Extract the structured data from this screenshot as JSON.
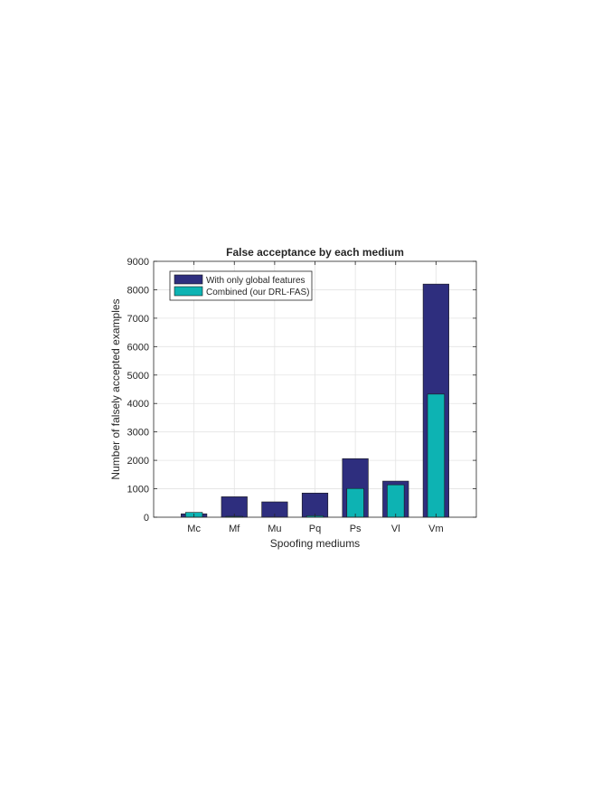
{
  "chart_data": {
    "type": "bar",
    "title": "False acceptance by each medium",
    "xlabel": "Spoofing mediums",
    "ylabel": "Number of falsely accepted examples",
    "categories": [
      "Mc",
      "Mf",
      "Mu",
      "Pq",
      "Ps",
      "Vl",
      "Vm"
    ],
    "series": [
      {
        "name": "With only global features",
        "values": [
          120,
          720,
          540,
          850,
          2060,
          1270,
          8200
        ],
        "color": "#2e2e7e"
      },
      {
        "name": "Combined (our DRL-FAS)",
        "values": [
          170,
          30,
          0,
          50,
          1010,
          1140,
          4330
        ],
        "color": "#0db3b3"
      }
    ],
    "ylim": [
      0,
      9000
    ],
    "yticks": [
      0,
      1000,
      2000,
      3000,
      4000,
      5000,
      6000,
      7000,
      8000,
      9000
    ],
    "grid": true,
    "legend_position": "top-left"
  }
}
